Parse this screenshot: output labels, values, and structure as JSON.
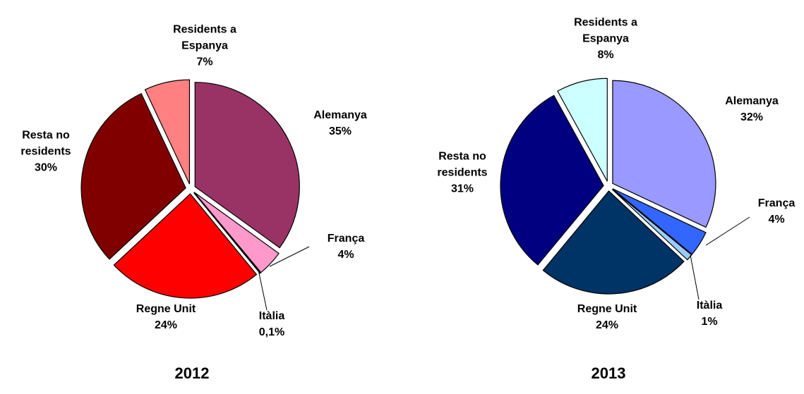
{
  "chart_data": [
    {
      "type": "pie",
      "title": "2012",
      "categories": [
        "Alemanya",
        "França",
        "Itàlia",
        "Regne Unit",
        "Resta no residents",
        "Residents a Espanya"
      ],
      "values": [
        35,
        4,
        0.1,
        24,
        30,
        7
      ],
      "value_labels": [
        "35%",
        "4%",
        "0,1%",
        "24%",
        "30%",
        "7%"
      ],
      "colors": [
        "#993366",
        "#ff99cc",
        "#ffccff",
        "#ff0000",
        "#800000",
        "#ff8080"
      ]
    },
    {
      "type": "pie",
      "title": "2013",
      "categories": [
        "Alemanya",
        "França",
        "Itàlia",
        "Regne Unit",
        "Resta no residents",
        "Residents a Espanya"
      ],
      "values": [
        32,
        4,
        1,
        24,
        31,
        8
      ],
      "value_labels": [
        "32%",
        "4%",
        "1%",
        "24%",
        "31%",
        "8%"
      ],
      "colors": [
        "#9999ff",
        "#3366ff",
        "#99ccff",
        "#003366",
        "#000080",
        "#ccffff"
      ]
    }
  ]
}
